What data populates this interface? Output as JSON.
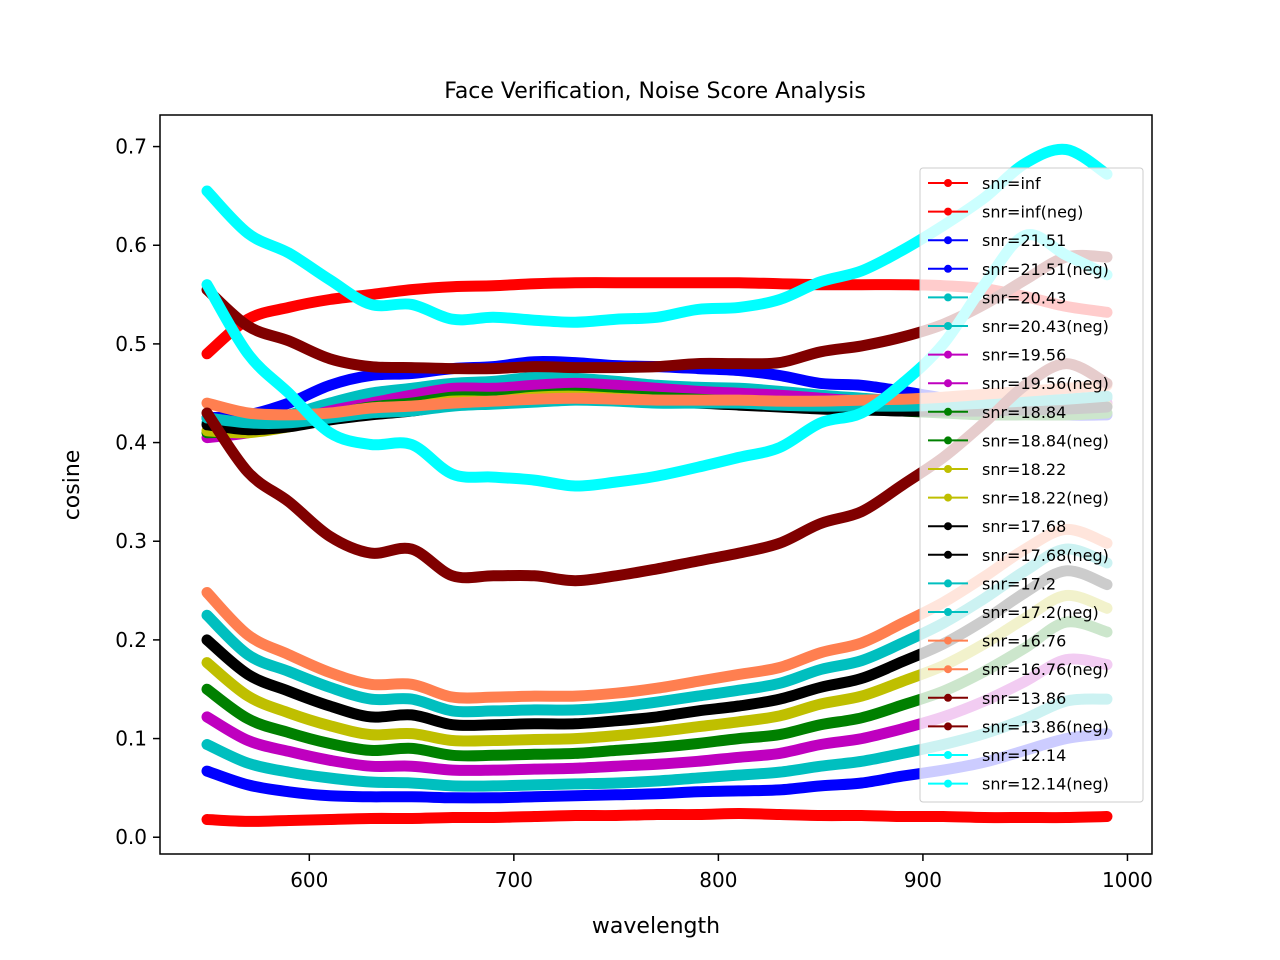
{
  "chart_data": {
    "type": "line",
    "title": "Face Verification, Noise Score Analysis",
    "xlabel": "wavelength",
    "ylabel": "cosine",
    "xlim": [
      527,
      1012
    ],
    "ylim": [
      -0.017,
      0.732
    ],
    "xticks": [
      "600",
      "700",
      "800",
      "900",
      "1000"
    ],
    "yticks": [
      "0.0",
      "0.1",
      "0.2",
      "0.3",
      "0.4",
      "0.5",
      "0.6",
      "0.7"
    ],
    "grid": false,
    "legend_position": "upper-right",
    "x": [
      550,
      570,
      590,
      610,
      630,
      650,
      670,
      690,
      710,
      730,
      750,
      770,
      790,
      810,
      830,
      850,
      870,
      890,
      910,
      930,
      950,
      970,
      990
    ],
    "series": [
      {
        "name": "snr=inf",
        "color": "#ff0000",
        "values": [
          0.018,
          0.016,
          0.017,
          0.018,
          0.019,
          0.019,
          0.02,
          0.02,
          0.021,
          0.022,
          0.022,
          0.023,
          0.023,
          0.024,
          0.023,
          0.022,
          0.022,
          0.021,
          0.021,
          0.02,
          0.02,
          0.02,
          0.021
        ]
      },
      {
        "name": "snr=inf(neg)",
        "color": "#ff0000",
        "values": [
          0.49,
          0.525,
          0.537,
          0.545,
          0.55,
          0.555,
          0.558,
          0.559,
          0.561,
          0.562,
          0.562,
          0.562,
          0.562,
          0.562,
          0.561,
          0.56,
          0.56,
          0.56,
          0.559,
          0.556,
          0.548,
          0.538,
          0.532
        ]
      },
      {
        "name": "snr=21.51",
        "color": "#0000ff",
        "values": [
          0.067,
          0.053,
          0.046,
          0.042,
          0.041,
          0.041,
          0.04,
          0.04,
          0.041,
          0.042,
          0.043,
          0.044,
          0.046,
          0.047,
          0.048,
          0.052,
          0.055,
          0.062,
          0.068,
          0.076,
          0.088,
          0.1,
          0.105
        ]
      },
      {
        "name": "snr=21.51(neg)",
        "color": "#0000ff",
        "values": [
          0.425,
          0.428,
          0.44,
          0.458,
          0.468,
          0.47,
          0.475,
          0.477,
          0.482,
          0.481,
          0.478,
          0.477,
          0.475,
          0.473,
          0.468,
          0.46,
          0.458,
          0.452,
          0.445,
          0.438,
          0.432,
          0.428,
          0.428
        ]
      },
      {
        "name": "snr=20.43",
        "color": "#00bfbf",
        "values": [
          0.094,
          0.075,
          0.066,
          0.06,
          0.056,
          0.055,
          0.052,
          0.052,
          0.053,
          0.054,
          0.055,
          0.057,
          0.06,
          0.063,
          0.066,
          0.072,
          0.077,
          0.085,
          0.094,
          0.105,
          0.12,
          0.138,
          0.14
        ]
      },
      {
        "name": "snr=20.43(neg)",
        "color": "#00bfbf",
        "values": [
          0.42,
          0.42,
          0.428,
          0.44,
          0.45,
          0.455,
          0.46,
          0.462,
          0.466,
          0.465,
          0.462,
          0.458,
          0.456,
          0.455,
          0.452,
          0.448,
          0.445,
          0.442,
          0.44,
          0.44,
          0.441,
          0.442,
          0.445
        ]
      },
      {
        "name": "snr=19.56",
        "color": "#bf00bf",
        "values": [
          0.122,
          0.098,
          0.087,
          0.078,
          0.072,
          0.072,
          0.068,
          0.068,
          0.069,
          0.07,
          0.072,
          0.074,
          0.077,
          0.081,
          0.085,
          0.094,
          0.1,
          0.11,
          0.122,
          0.138,
          0.158,
          0.18,
          0.175
        ]
      },
      {
        "name": "snr=19.56(neg)",
        "color": "#bf00bf",
        "values": [
          0.405,
          0.41,
          0.42,
          0.432,
          0.44,
          0.448,
          0.455,
          0.455,
          0.458,
          0.46,
          0.458,
          0.455,
          0.452,
          0.45,
          0.448,
          0.445,
          0.442,
          0.44,
          0.44,
          0.44,
          0.44,
          0.44,
          0.44
        ]
      },
      {
        "name": "snr=18.84",
        "color": "#008000",
        "values": [
          0.15,
          0.12,
          0.106,
          0.095,
          0.088,
          0.09,
          0.083,
          0.083,
          0.084,
          0.085,
          0.088,
          0.091,
          0.095,
          0.1,
          0.104,
          0.114,
          0.121,
          0.134,
          0.148,
          0.168,
          0.192,
          0.218,
          0.208
        ]
      },
      {
        "name": "snr=18.84(neg)",
        "color": "#008000",
        "values": [
          0.41,
          0.412,
          0.418,
          0.428,
          0.436,
          0.44,
          0.446,
          0.446,
          0.448,
          0.45,
          0.448,
          0.446,
          0.444,
          0.442,
          0.44,
          0.437,
          0.434,
          0.432,
          0.43,
          0.428,
          0.428,
          0.428,
          0.43
        ]
      },
      {
        "name": "snr=18.22",
        "color": "#bfbf00",
        "values": [
          0.177,
          0.143,
          0.126,
          0.113,
          0.104,
          0.105,
          0.098,
          0.098,
          0.099,
          0.1,
          0.103,
          0.107,
          0.112,
          0.117,
          0.123,
          0.135,
          0.143,
          0.158,
          0.174,
          0.196,
          0.222,
          0.245,
          0.232
        ]
      },
      {
        "name": "snr=18.22(neg)",
        "color": "#bfbf00",
        "values": [
          0.412,
          0.41,
          0.416,
          0.425,
          0.432,
          0.436,
          0.442,
          0.442,
          0.446,
          0.447,
          0.445,
          0.443,
          0.442,
          0.44,
          0.438,
          0.436,
          0.434,
          0.433,
          0.433,
          0.433,
          0.434,
          0.435,
          0.437
        ]
      },
      {
        "name": "snr=17.68",
        "color": "#000000",
        "values": [
          0.2,
          0.165,
          0.148,
          0.133,
          0.122,
          0.124,
          0.114,
          0.114,
          0.115,
          0.115,
          0.118,
          0.122,
          0.128,
          0.133,
          0.14,
          0.152,
          0.161,
          0.178,
          0.196,
          0.22,
          0.248,
          0.27,
          0.256
        ]
      },
      {
        "name": "snr=17.68(neg)",
        "color": "#000000",
        "values": [
          0.418,
          0.413,
          0.416,
          0.423,
          0.428,
          0.432,
          0.438,
          0.44,
          0.442,
          0.444,
          0.443,
          0.441,
          0.44,
          0.438,
          0.436,
          0.434,
          0.433,
          0.432,
          0.432,
          0.432,
          0.433,
          0.434,
          0.436
        ]
      },
      {
        "name": "snr=17.2",
        "color": "#00bfbf",
        "values": [
          0.225,
          0.185,
          0.168,
          0.152,
          0.14,
          0.14,
          0.128,
          0.128,
          0.129,
          0.129,
          0.132,
          0.137,
          0.143,
          0.149,
          0.156,
          0.17,
          0.179,
          0.197,
          0.217,
          0.242,
          0.27,
          0.292,
          0.278
        ]
      },
      {
        "name": "snr=17.2(neg)",
        "color": "#00bfbf",
        "values": [
          0.425,
          0.42,
          0.42,
          0.425,
          0.43,
          0.432,
          0.437,
          0.439,
          0.441,
          0.443,
          0.442,
          0.44,
          0.44,
          0.44,
          0.438,
          0.437,
          0.437,
          0.437,
          0.438,
          0.44,
          0.442,
          0.444,
          0.447
        ]
      },
      {
        "name": "snr=16.76",
        "color": "#ff7f50",
        "values": [
          0.248,
          0.205,
          0.185,
          0.167,
          0.155,
          0.155,
          0.142,
          0.142,
          0.143,
          0.143,
          0.146,
          0.151,
          0.158,
          0.165,
          0.172,
          0.187,
          0.197,
          0.217,
          0.238,
          0.264,
          0.292,
          0.312,
          0.298
        ]
      },
      {
        "name": "snr=16.76(neg)",
        "color": "#ff7f50",
        "values": [
          0.44,
          0.43,
          0.428,
          0.43,
          0.435,
          0.437,
          0.44,
          0.442,
          0.444,
          0.445,
          0.444,
          0.443,
          0.443,
          0.443,
          0.442,
          0.442,
          0.443,
          0.444,
          0.446,
          0.449,
          0.452,
          0.455,
          0.458
        ]
      },
      {
        "name": "snr=13.86",
        "color": "#800000",
        "values": [
          0.43,
          0.37,
          0.34,
          0.305,
          0.288,
          0.292,
          0.265,
          0.265,
          0.265,
          0.26,
          0.265,
          0.272,
          0.28,
          0.288,
          0.298,
          0.318,
          0.33,
          0.357,
          0.385,
          0.42,
          0.458,
          0.48,
          0.46
        ]
      },
      {
        "name": "snr=13.86(neg)",
        "color": "#800000",
        "values": [
          0.555,
          0.518,
          0.503,
          0.485,
          0.477,
          0.476,
          0.475,
          0.475,
          0.477,
          0.476,
          0.476,
          0.477,
          0.48,
          0.48,
          0.481,
          0.492,
          0.498,
          0.507,
          0.52,
          0.54,
          0.565,
          0.588,
          0.588
        ]
      },
      {
        "name": "snr=12.14",
        "color": "#00ffff",
        "values": [
          0.56,
          0.49,
          0.45,
          0.41,
          0.398,
          0.398,
          0.368,
          0.365,
          0.362,
          0.356,
          0.36,
          0.366,
          0.375,
          0.385,
          0.395,
          0.42,
          0.43,
          0.46,
          0.5,
          0.56,
          0.61,
          0.59,
          0.57
        ]
      },
      {
        "name": "snr=12.14(neg)",
        "color": "#00ffff",
        "values": [
          0.655,
          0.612,
          0.592,
          0.565,
          0.54,
          0.54,
          0.525,
          0.527,
          0.524,
          0.522,
          0.525,
          0.527,
          0.535,
          0.537,
          0.545,
          0.563,
          0.574,
          0.595,
          0.62,
          0.648,
          0.683,
          0.697,
          0.672
        ]
      }
    ]
  }
}
